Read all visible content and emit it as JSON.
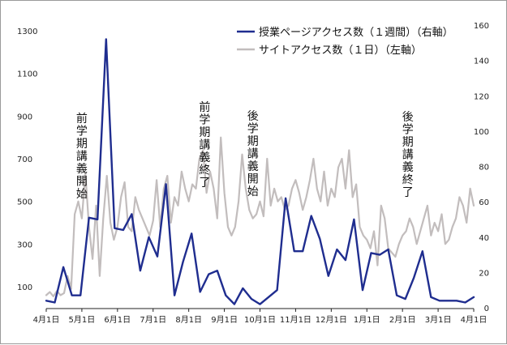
{
  "chart_data": {
    "type": "line",
    "x_categories": [
      "4月1日",
      "5月1日",
      "6月1日",
      "7月1日",
      "8月1日",
      "9月1日",
      "10月1日",
      "11月1日",
      "12月1日",
      "1月1日",
      "2月1日",
      "3月1日",
      "4月1日"
    ],
    "y_left": {
      "ticks": [
        100,
        300,
        500,
        700,
        900,
        1100,
        1300
      ],
      "range": [
        20,
        1330
      ]
    },
    "y_right": {
      "ticks": [
        0,
        20,
        40,
        60,
        80,
        100,
        120,
        140,
        160
      ],
      "range": [
        0,
        160
      ]
    },
    "legend_position": "top-right",
    "grid": false,
    "series": [
      {
        "name": "授業ページアクセス数（１週間）（右軸）",
        "axis": "right",
        "color": "#1f2d8f",
        "x": [
          0,
          0.24,
          0.48,
          0.72,
          0.96,
          1.2,
          1.44,
          1.68,
          1.92,
          2.16,
          2.4,
          2.64,
          2.88,
          3.12,
          3.36,
          3.6,
          3.84,
          4.08,
          4.32,
          4.56,
          4.8,
          5.04,
          5.28,
          5.52,
          5.76,
          6.0,
          6.24,
          6.48,
          6.72,
          6.96,
          7.2,
          7.44,
          7.68,
          7.92,
          8.16,
          8.4,
          8.64,
          8.88,
          9.12,
          9.36,
          9.6,
          9.84,
          10.08,
          10.32,
          10.56,
          10.8,
          11.04,
          11.28,
          11.52,
          11.76,
          12.0
        ],
        "values": [
          4,
          3,
          23,
          7,
          7,
          51,
          50,
          152,
          45,
          44,
          53,
          21,
          40,
          29,
          70,
          7,
          26,
          42,
          9,
          19,
          21,
          7,
          2,
          11,
          5,
          2,
          6,
          10,
          62,
          32,
          32,
          52,
          39,
          18,
          33,
          27,
          50,
          10,
          31,
          30,
          33,
          7,
          5,
          17,
          32,
          6,
          4,
          4,
          4,
          3,
          6
        ]
      },
      {
        "name": "サイトアクセス数（１日）（左軸）",
        "axis": "left",
        "color": "#c2bdbd",
        "x": [
          0,
          0.1,
          0.2,
          0.3,
          0.4,
          0.5,
          0.6,
          0.7,
          0.8,
          0.9,
          1.0,
          1.1,
          1.2,
          1.3,
          1.4,
          1.5,
          1.6,
          1.7,
          1.8,
          1.9,
          2.0,
          2.1,
          2.2,
          2.3,
          2.4,
          2.5,
          2.6,
          2.7,
          2.8,
          2.9,
          3.0,
          3.1,
          3.2,
          3.3,
          3.4,
          3.5,
          3.6,
          3.7,
          3.8,
          3.9,
          4.0,
          4.1,
          4.2,
          4.3,
          4.4,
          4.5,
          4.6,
          4.7,
          4.8,
          4.9,
          5.0,
          5.1,
          5.2,
          5.3,
          5.4,
          5.5,
          5.6,
          5.7,
          5.8,
          5.9,
          6.0,
          6.1,
          6.2,
          6.3,
          6.4,
          6.5,
          6.6,
          6.7,
          6.8,
          6.9,
          7.0,
          7.1,
          7.2,
          7.3,
          7.4,
          7.5,
          7.6,
          7.7,
          7.8,
          7.9,
          8.0,
          8.1,
          8.2,
          8.3,
          8.4,
          8.5,
          8.6,
          8.7,
          8.8,
          8.9,
          9.0,
          9.1,
          9.2,
          9.3,
          9.4,
          9.5,
          9.6,
          9.7,
          9.8,
          9.9,
          10.0,
          10.1,
          10.2,
          10.3,
          10.4,
          10.5,
          10.6,
          10.7,
          10.8,
          10.9,
          11.0,
          11.1,
          11.2,
          11.3,
          11.4,
          11.5,
          11.6,
          11.7,
          11.8,
          11.9,
          12.0
        ],
        "values": [
          60,
          75,
          55,
          80,
          60,
          70,
          150,
          90,
          440,
          500,
          420,
          630,
          380,
          230,
          480,
          150,
          420,
          620,
          400,
          320,
          380,
          520,
          590,
          380,
          360,
          520,
          460,
          420,
          380,
          340,
          410,
          600,
          380,
          560,
          620,
          400,
          520,
          480,
          640,
          560,
          500,
          580,
          560,
          700,
          740,
          540,
          640,
          560,
          420,
          800,
          540,
          380,
          340,
          380,
          500,
          720,
          560,
          460,
          420,
          440,
          500,
          430,
          700,
          480,
          560,
          500,
          520,
          460,
          480,
          560,
          600,
          540,
          460,
          520,
          600,
          700,
          560,
          500,
          640,
          480,
          560,
          520,
          660,
          700,
          560,
          740,
          520,
          580,
          380,
          340,
          320,
          280,
          360,
          200,
          480,
          420,
          280,
          260,
          240,
          300,
          340,
          360,
          420,
          380,
          300,
          360,
          420,
          480,
          340,
          400,
          360,
          440,
          300,
          320,
          380,
          420,
          520,
          480,
          400,
          560,
          480
        ]
      }
    ]
  },
  "legend": {
    "items": [
      {
        "label": "授業ページアクセス数（１週間）（右軸）",
        "color": "#1f2d8f"
      },
      {
        "label": "サイトアクセス数（１日）（左軸）",
        "color": "#c2bdbd"
      }
    ]
  },
  "annotations": [
    {
      "text": "前学期講義開始",
      "x": 1.0
    },
    {
      "text": "前学期講義終了",
      "x": 4.45
    },
    {
      "text": "後学期講義開始",
      "x": 5.8
    },
    {
      "text": "後学期講義終了",
      "x": 10.15
    }
  ]
}
